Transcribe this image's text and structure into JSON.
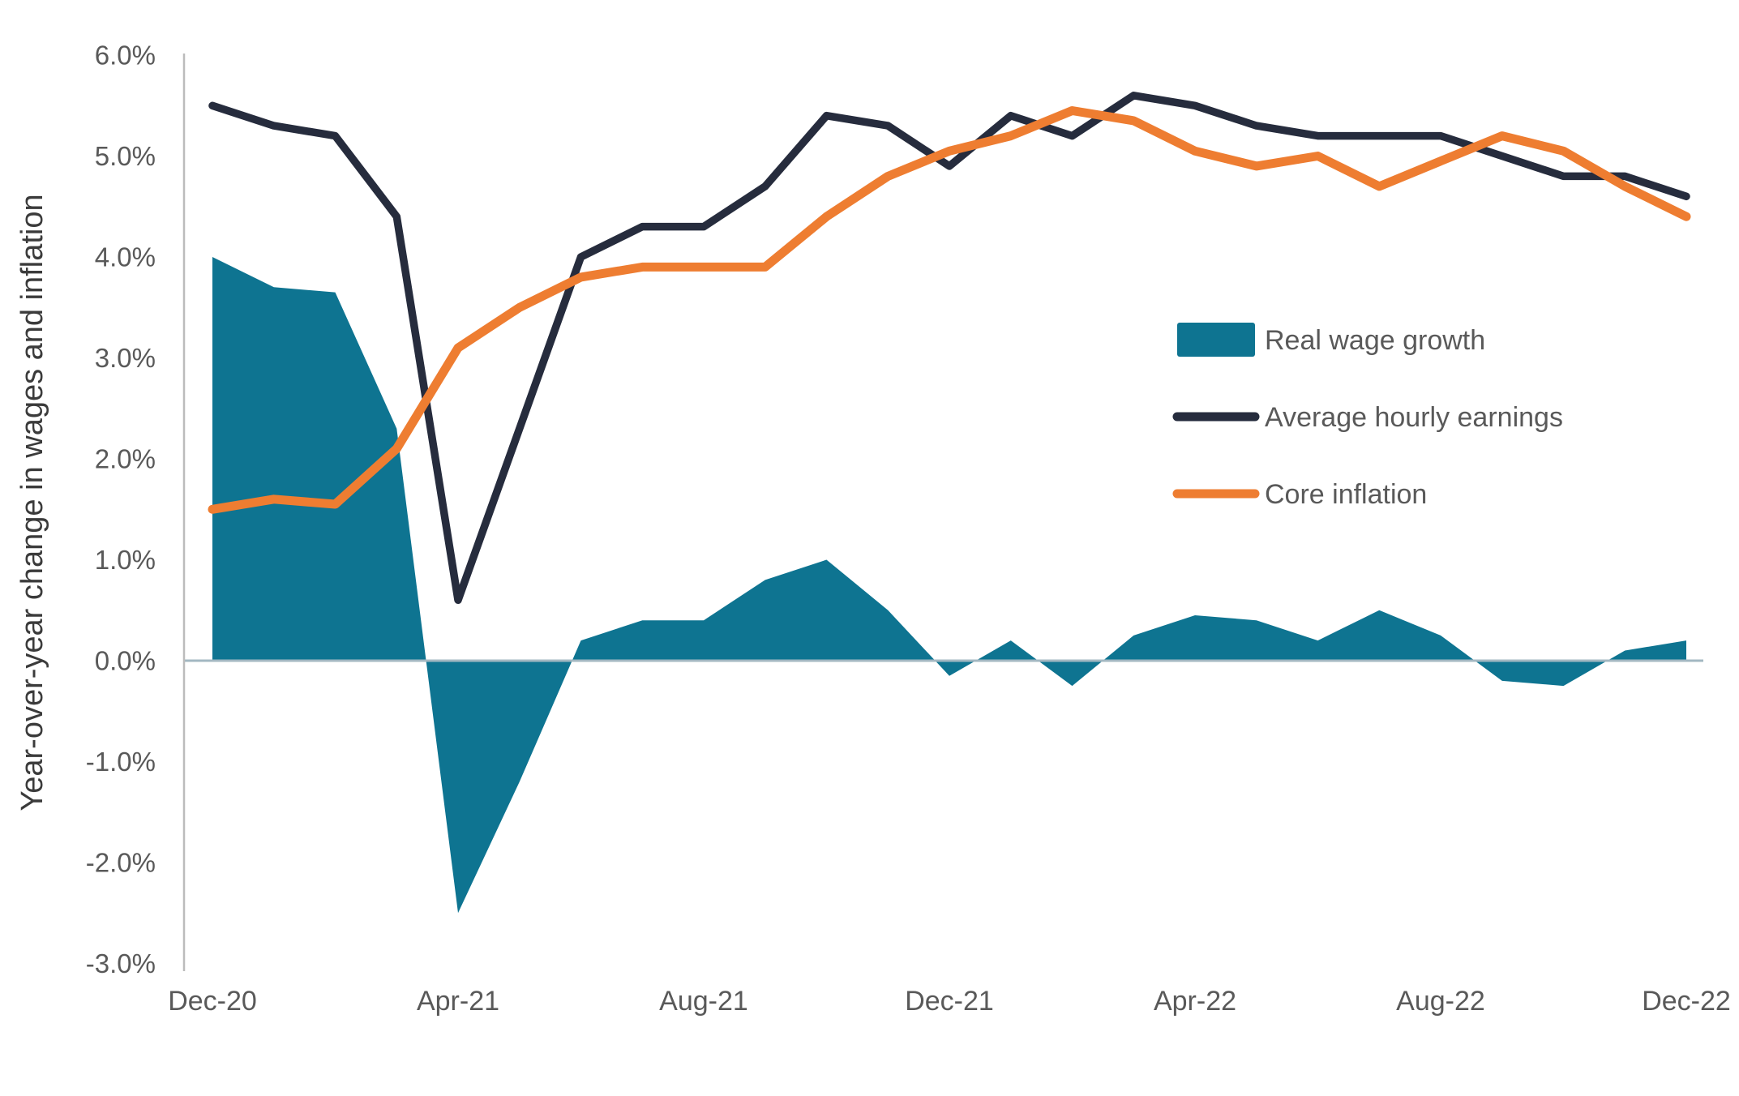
{
  "chart_data": {
    "type": "combo",
    "title": "",
    "ylabel": "Year-over-year change in wages and inflation",
    "xlabel": "",
    "ylim": [
      -3.0,
      6.0
    ],
    "grid": "zero-line-only",
    "legend_position": "middle-right",
    "x": [
      "Dec-20",
      "Jan-21",
      "Feb-21",
      "Mar-21",
      "Apr-21",
      "May-21",
      "Jun-21",
      "Jul-21",
      "Aug-21",
      "Sep-21",
      "Oct-21",
      "Nov-21",
      "Dec-21",
      "Jan-22",
      "Feb-22",
      "Mar-22",
      "Apr-22",
      "May-22",
      "Jun-22",
      "Jul-22",
      "Aug-22",
      "Sep-22",
      "Oct-22",
      "Nov-22",
      "Dec-22"
    ],
    "series": [
      {
        "name": "Real wage growth",
        "type": "area",
        "color": "#0e7491",
        "values": [
          4.0,
          3.7,
          3.65,
          2.3,
          -2.5,
          -1.2,
          0.2,
          0.4,
          0.4,
          0.8,
          1.0,
          0.5,
          -0.15,
          0.2,
          -0.25,
          0.25,
          0.45,
          0.4,
          0.2,
          0.5,
          0.25,
          -0.2,
          -0.25,
          0.1,
          0.2
        ]
      },
      {
        "name": "Average hourly earnings",
        "type": "line",
        "color": "#262c3d",
        "values": [
          5.5,
          5.3,
          5.2,
          4.4,
          0.6,
          2.3,
          4.0,
          4.3,
          4.3,
          4.7,
          5.4,
          5.3,
          4.9,
          5.4,
          5.2,
          5.6,
          5.5,
          5.3,
          5.2,
          5.2,
          5.2,
          5.0,
          4.8,
          4.8,
          4.6
        ]
      },
      {
        "name": "Core inflation",
        "type": "line",
        "color": "#ee7d31",
        "values": [
          1.5,
          1.6,
          1.55,
          2.1,
          3.1,
          3.5,
          3.8,
          3.9,
          3.9,
          3.9,
          4.4,
          4.8,
          5.05,
          5.2,
          5.45,
          5.35,
          5.05,
          4.9,
          5.0,
          4.7,
          4.95,
          5.2,
          5.05,
          4.7,
          4.4
        ]
      }
    ]
  },
  "y_axis": {
    "title": "Year-over-year change in wages and inflation",
    "ticks": [
      {
        "label": "6.0%",
        "value": 6
      },
      {
        "label": "5.0%",
        "value": 5
      },
      {
        "label": "4.0%",
        "value": 4
      },
      {
        "label": "3.0%",
        "value": 3
      },
      {
        "label": "2.0%",
        "value": 2
      },
      {
        "label": "1.0%",
        "value": 1
      },
      {
        "label": "0.0%",
        "value": 0
      },
      {
        "label": "-1.0%",
        "value": -1
      },
      {
        "label": "-2.0%",
        "value": -2
      },
      {
        "label": "-3.0%",
        "value": -3
      }
    ]
  },
  "x_axis": {
    "ticks": [
      {
        "label": "Dec-20",
        "month_index": 0
      },
      {
        "label": "Apr-21",
        "month_index": 4
      },
      {
        "label": "Aug-21",
        "month_index": 8
      },
      {
        "label": "Dec-21",
        "month_index": 12
      },
      {
        "label": "Apr-22",
        "month_index": 16
      },
      {
        "label": "Aug-22",
        "month_index": 20
      },
      {
        "label": "Dec-22",
        "month_index": 24
      }
    ]
  },
  "legend": {
    "items": [
      {
        "label": "Real wage growth",
        "swatch": "area-swatch",
        "color": "#0e7491"
      },
      {
        "label": "Average hourly earnings",
        "swatch": "line-swatch",
        "color": "#262c3d"
      },
      {
        "label": "Core inflation",
        "swatch": "line-swatch",
        "color": "#ee7d31"
      }
    ]
  },
  "colors": {
    "teal_area": "#0e7491",
    "navy_line": "#262c3d",
    "orange_line": "#ee7d31",
    "zero_line": "#a3b8c2",
    "axis_line": "#bcbcbc",
    "tick_text": "#595959",
    "axis_title_text": "#3b3b3b",
    "background": "#ffffff"
  }
}
